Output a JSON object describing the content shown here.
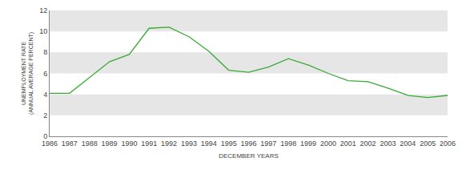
{
  "chart_data": {
    "type": "line",
    "x_label": "DECEMBER YEARS",
    "y_label": "UNEMPLOYMENT RATE\n(ANNUAL AVERAGE PERCENT)",
    "categories": [
      "1986",
      "1987",
      "1988",
      "1989",
      "1990",
      "1991",
      "1992",
      "1993",
      "1994",
      "1995",
      "1996",
      "1997",
      "1998",
      "1999",
      "2000",
      "2001",
      "2002",
      "2003",
      "2004",
      "2005",
      "2006"
    ],
    "values": [
      4.1,
      4.1,
      5.6,
      7.1,
      7.8,
      10.3,
      10.4,
      9.5,
      8.1,
      6.3,
      6.1,
      6.6,
      7.4,
      6.8,
      6.0,
      5.3,
      5.2,
      4.6,
      3.9,
      3.7,
      3.9
    ],
    "color": "#3aaa35",
    "ylim": [
      0,
      12
    ],
    "yticks": [
      0,
      2,
      4,
      6,
      8,
      10,
      12
    ],
    "grid": true
  }
}
